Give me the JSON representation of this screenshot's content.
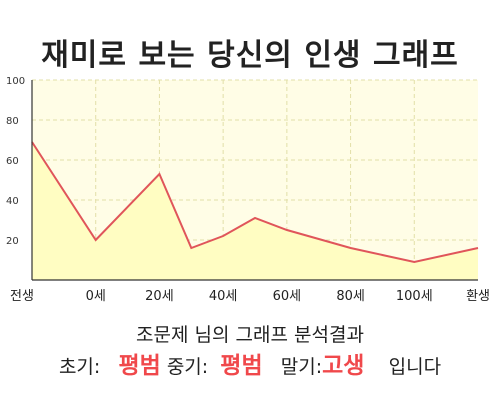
{
  "title": "재미로 보는 당신의 인생 그래프",
  "summary": {
    "name": "조문제",
    "suffix": "님의 그래프 분석결과"
  },
  "result": {
    "early_label": "초기:",
    "early_value": "평범",
    "mid_label": "중기:",
    "mid_value": "평범",
    "late_label": "말기:",
    "late_value": "고생",
    "ending": "입니다"
  },
  "colors": {
    "line": "#e0555a",
    "fill": "#fffdc2",
    "plot_bg": "#fffde6",
    "grid": "#e2dfa8",
    "highlight": "#f0484b"
  },
  "chart_data": {
    "type": "area",
    "title": "재미로 보는 당신의 인생 그래프",
    "xlabel": "",
    "ylabel": "",
    "x_tick_labels": [
      "전생",
      "0세",
      "20세",
      "40세",
      "60세",
      "80세",
      "100세",
      "환생"
    ],
    "x": [
      -20,
      0,
      20,
      30,
      40,
      50,
      60,
      80,
      100,
      120
    ],
    "values": [
      69,
      20,
      53,
      16,
      22,
      31,
      25,
      16,
      9,
      16
    ],
    "y_ticks": [
      20,
      40,
      60,
      80,
      100
    ],
    "ylim": [
      0,
      100
    ],
    "xlim": [
      -20,
      120
    ],
    "grid": true
  }
}
